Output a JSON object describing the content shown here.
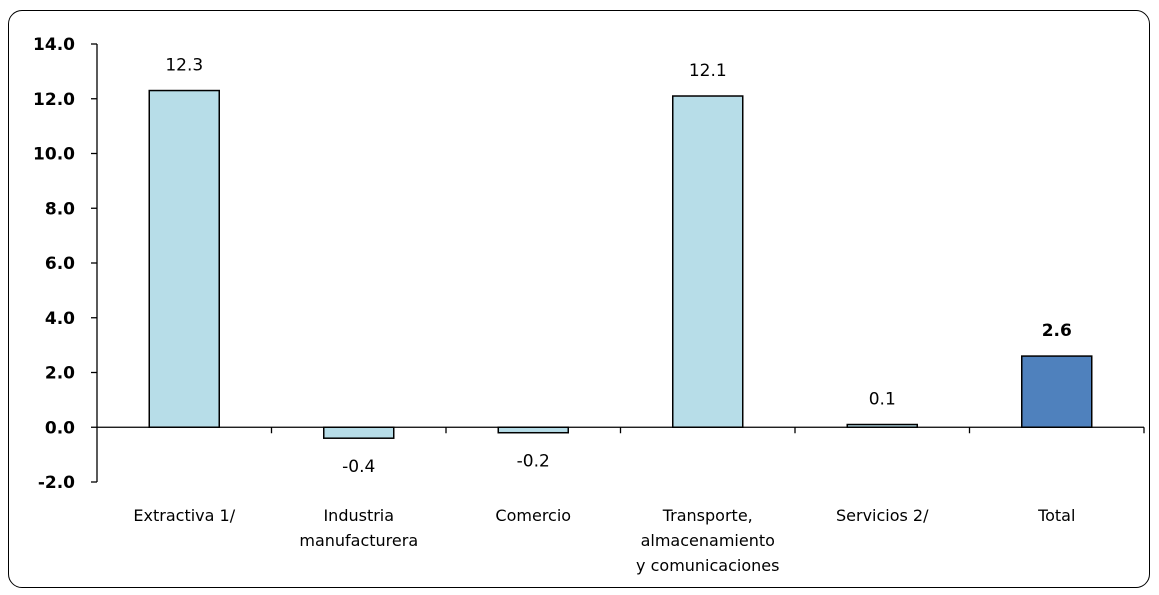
{
  "chart_data": {
    "type": "bar",
    "title": "",
    "xlabel": "",
    "ylabel": "",
    "ylim": [
      -2,
      14
    ],
    "yticks": [
      "14.0",
      "12.0",
      "10.0",
      "8.0",
      "6.0",
      "4.0",
      "2.0",
      "0.0",
      "-2.0"
    ],
    "ytick_values": [
      14,
      12,
      10,
      8,
      6,
      4,
      2,
      0,
      -2
    ],
    "grid": false,
    "legend": "none",
    "categories": [
      [
        "Extractiva 1/"
      ],
      [
        "Industria",
        "manufacturera"
      ],
      [
        "Comercio"
      ],
      [
        "Transporte,",
        "almacenamiento",
        "y comunicaciones"
      ],
      [
        "Servicios 2/"
      ],
      [
        "Total"
      ]
    ],
    "values": [
      12.3,
      -0.4,
      -0.2,
      12.1,
      0.1,
      2.6
    ],
    "value_labels": [
      "12.3",
      "-0.4",
      "-0.2",
      "12.1",
      "0.1",
      "2.6"
    ],
    "bold_labels": [
      false,
      false,
      false,
      false,
      false,
      true
    ],
    "colors": [
      "#b7dde8",
      "#b7dde8",
      "#b7dde8",
      "#b7dde8",
      "#b7dde8",
      "#4f81bd"
    ]
  }
}
